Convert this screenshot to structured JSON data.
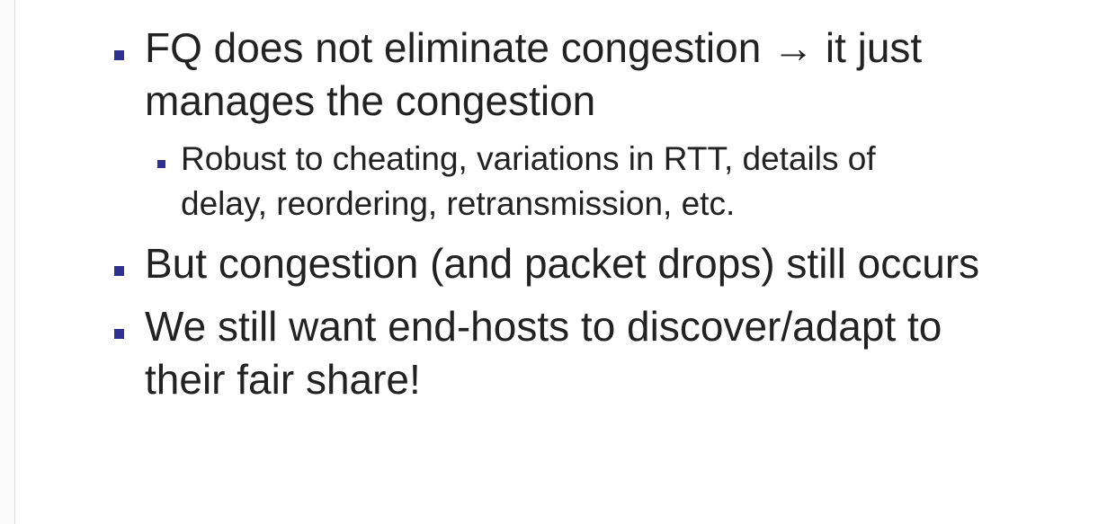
{
  "slide": {
    "bullets": [
      {
        "line1": "FQ does not eliminate congestion → it just",
        "line2": "manages the congestion",
        "sub": {
          "line1": "Robust to cheating, variations in RTT, details of",
          "line2": "delay, reordering, retransmission, etc."
        }
      },
      {
        "line1": "But congestion (and packet drops) still occurs"
      },
      {
        "line1": "We still want end-hosts to discover/adapt to",
        "line2": "their fair share!"
      }
    ],
    "colors": {
      "bullet": "#2e3192",
      "text": "#222222"
    }
  }
}
